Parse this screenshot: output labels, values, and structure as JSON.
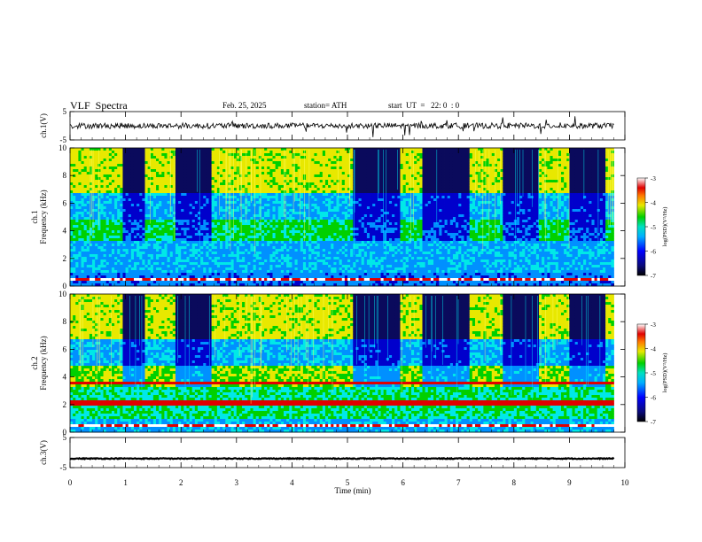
{
  "header": {
    "title": "VLF  Spectra",
    "date": "Feb. 25, 2025",
    "station": "station= ATH",
    "start_ut": "start  UT  =   22: 0  : 0"
  },
  "colors": {
    "colormap": [
      "#0a0a5c",
      "#0000cc",
      "#0090ff",
      "#00e8e8",
      "#00d000",
      "#e8e800",
      "#ff8800",
      "#e00000",
      "#ffffff"
    ],
    "trace": "#000000"
  },
  "chart_data": [
    {
      "type": "line",
      "panel": "ch1-waveform",
      "ylabel": "ch.1(V)",
      "ylim": [
        -5,
        5
      ],
      "yticks": [
        "5",
        "-5"
      ],
      "xlim": [
        0,
        10
      ],
      "series": [
        {
          "values_desc": [],
          "baseline": 0
        }
      ],
      "baseline_v": 0,
      "noise_amplitude_v": 1
    },
    {
      "type": "heatmap",
      "panel": "ch1-spectrogram",
      "ylabel": "ch.1\nFrequency  (kHz)",
      "ylim": [
        0,
        10
      ],
      "yticks": [
        "0",
        "2",
        "4",
        "6",
        "8",
        "10"
      ],
      "xlim": [
        0,
        9.8
      ],
      "colorbar": {
        "label": "log(PSD)(V²/Hz)",
        "range": [
          -7,
          -3
        ],
        "ticks": [
          "-3",
          "-4",
          "-5",
          "-6",
          "-7"
        ]
      },
      "quiet_intervals_min": [
        [
          0.95,
          1.35
        ],
        [
          1.9,
          2.55
        ],
        [
          5.1,
          5.95
        ],
        [
          6.35,
          7.2
        ],
        [
          7.8,
          8.45
        ],
        [
          9.0,
          9.65
        ]
      ]
    },
    {
      "type": "heatmap",
      "panel": "ch2-spectrogram",
      "ylabel": "ch.2\nFrequency  (kHz)",
      "ylim": [
        0,
        10
      ],
      "yticks": [
        "0",
        "2",
        "4",
        "6",
        "8",
        "10"
      ],
      "xlim": [
        0,
        9.8
      ],
      "colorbar": {
        "label": "log(PSD)(V²/Hz)",
        "range": [
          -7,
          -3
        ],
        "ticks": [
          "-3",
          "-4",
          "-5",
          "-6",
          "-7"
        ]
      },
      "quiet_intervals_min": [
        [
          0.95,
          1.35
        ],
        [
          1.9,
          2.55
        ],
        [
          5.1,
          5.95
        ],
        [
          6.35,
          7.2
        ],
        [
          7.8,
          8.45
        ],
        [
          9.0,
          9.65
        ]
      ]
    },
    {
      "type": "line",
      "panel": "ch3-waveform",
      "ylabel": "ch.3(V)",
      "ylim": [
        -5,
        5
      ],
      "yticks": [
        "5",
        "-5"
      ],
      "xlim": [
        0,
        10
      ],
      "baseline_v": -2,
      "noise_amplitude_v": 0.15
    }
  ],
  "xaxis": {
    "label": "Time  (min)",
    "ticks": [
      "0",
      "1",
      "2",
      "3",
      "4",
      "5",
      "6",
      "7",
      "8",
      "9",
      "10"
    ],
    "range": [
      0,
      10
    ]
  }
}
